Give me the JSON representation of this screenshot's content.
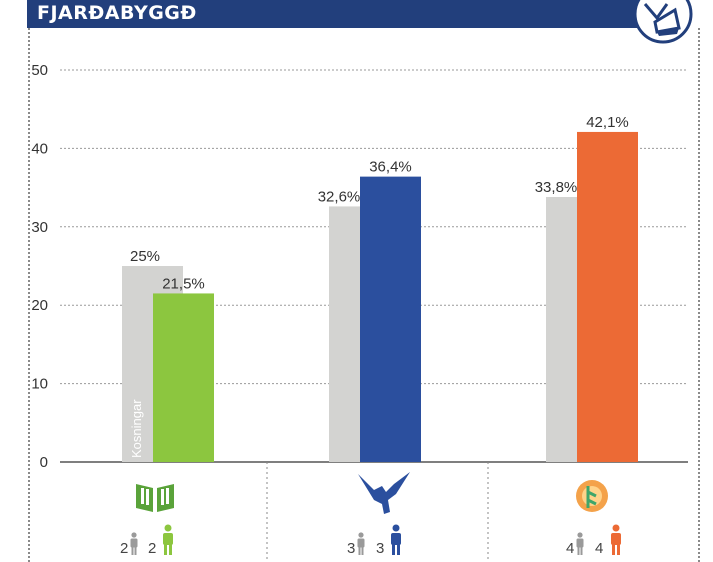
{
  "header": {
    "title": "FJARÐABYGGÐ"
  },
  "chart_data": {
    "type": "bar",
    "title": "FJARÐABYGGÐ",
    "ylim": [
      0,
      50
    ],
    "yticks": [
      0,
      10,
      20,
      30,
      40,
      50
    ],
    "grid": true,
    "categories": [
      "green party",
      "blue party",
      "orange party"
    ],
    "series": [
      {
        "name": "Kosningar",
        "color": "#d3d3d1",
        "values": [
          25,
          32.6,
          33.8
        ],
        "labels": [
          "25%",
          "32,6%",
          "33,8%"
        ]
      },
      {
        "colors": [
          "#8cc63f",
          "#2b4f9e",
          "#ec6a35"
        ],
        "values": [
          21.5,
          36.4,
          42.1
        ],
        "labels": [
          "21,5%",
          "36,4%",
          "42,1%"
        ]
      }
    ]
  },
  "seats": [
    {
      "previous": "2",
      "current": "2",
      "color": "#8cc63f",
      "icon": "book-icon"
    },
    {
      "previous": "3",
      "current": "3",
      "color": "#2b4f9e",
      "icon": "falcon-icon"
    },
    {
      "previous": "4",
      "current": "4",
      "color": "#ec6a35",
      "icon": "sun-figure-icon"
    }
  ],
  "colors": {
    "header": "#223f7c",
    "grey_bar": "#d3d3d1",
    "person_grey": "#9a9a9a"
  }
}
